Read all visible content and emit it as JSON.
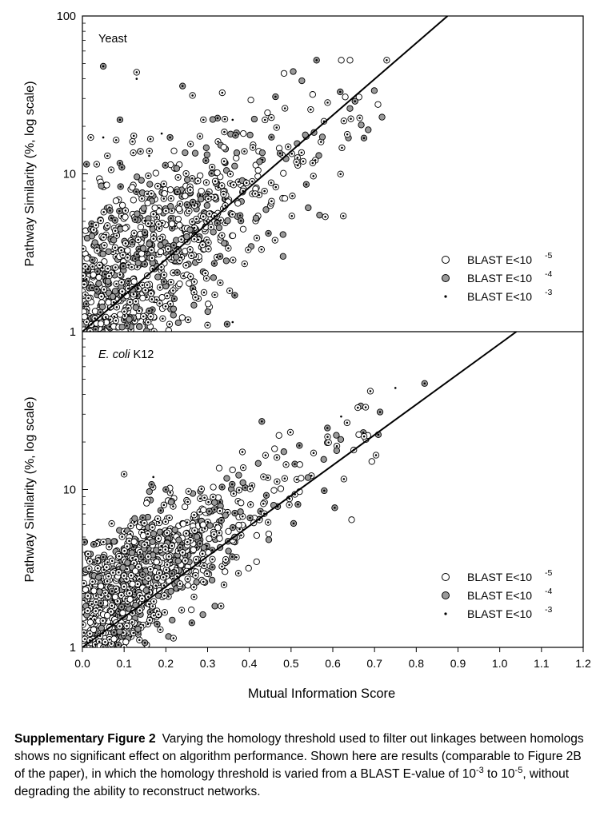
{
  "chart_data": [
    {
      "type": "scatter",
      "panel_label": "Yeast",
      "ylabel": "Pathway Similarity (%, log scale)",
      "yscale": "log",
      "ylim": [
        1,
        100
      ],
      "xlim": [
        0.0,
        1.2
      ],
      "yticks": [
        "1",
        "10",
        "100"
      ],
      "grid": false,
      "legend_position": "bottom-right",
      "series": [
        {
          "name": "BLAST E<10",
          "exponent": "-5",
          "marker": "open-circle",
          "color": "#ffffff",
          "edge": "#000000"
        },
        {
          "name": "BLAST E<10",
          "exponent": "-4",
          "marker": "gray-filled-circle",
          "color": "#9a9a9a",
          "edge": "#000000"
        },
        {
          "name": "BLAST E<10",
          "exponent": "-3",
          "marker": "small-dot",
          "color": "#000000",
          "edge": "#000000"
        }
      ],
      "fit_line": {
        "x": [
          0.0,
          0.875
        ],
        "y": [
          1.0,
          100.0
        ]
      },
      "outliers": [
        {
          "x": 0.05,
          "y": 48
        },
        {
          "x": 0.13,
          "y": 44
        },
        {
          "x": 0.13,
          "y": 40
        },
        {
          "x": 0.24,
          "y": 36
        },
        {
          "x": 0.02,
          "y": 17
        },
        {
          "x": 0.05,
          "y": 17
        },
        {
          "x": 0.09,
          "y": 22
        },
        {
          "x": 0.12,
          "y": 16
        },
        {
          "x": 0.19,
          "y": 18
        },
        {
          "x": 0.21,
          "y": 17
        },
        {
          "x": 0.29,
          "y": 22
        },
        {
          "x": 0.36,
          "y": 22
        },
        {
          "x": 0.365,
          "y": 1.7
        },
        {
          "x": 0.3,
          "y": 1.1
        },
        {
          "x": 0.36,
          "y": 1.15
        },
        {
          "x": 0.33,
          "y": 3.0
        },
        {
          "x": 0.06,
          "y": 13
        },
        {
          "x": 0.16,
          "y": 13
        },
        {
          "x": 0.01,
          "y": 11.5
        }
      ],
      "cloud": {
        "n": 900,
        "x_mean": 0.2,
        "x_spread": 0.2,
        "y_at_x0": 1.6,
        "y_at_x1": 95,
        "log_spread": 0.32
      }
    },
    {
      "type": "scatter",
      "panel_label": "E. coli",
      "panel_label_suffix": "K12",
      "xlabel": "Mutual Information Score",
      "ylabel": "Pathway Similarity (%, log scale)",
      "yscale": "log",
      "ylim": [
        1,
        100
      ],
      "xlim": [
        0.0,
        1.2
      ],
      "xticks": [
        "0.0",
        "0.1",
        "0.2",
        "0.3",
        "0.4",
        "0.5",
        "0.6",
        "0.7",
        "0.8",
        "0.9",
        "1.0",
        "1.1",
        "1.2"
      ],
      "yticks": [
        "1",
        "10",
        "100"
      ],
      "grid": false,
      "legend_position": "bottom-right",
      "series": [
        {
          "name": "BLAST E<10",
          "exponent": "-5",
          "marker": "open-circle",
          "color": "#ffffff",
          "edge": "#000000"
        },
        {
          "name": "BLAST E<10",
          "exponent": "-4",
          "marker": "gray-filled-circle",
          "color": "#9a9a9a",
          "edge": "#000000"
        },
        {
          "name": "BLAST E<10",
          "exponent": "-3",
          "marker": "small-dot",
          "color": "#000000",
          "edge": "#000000"
        }
      ],
      "fit_line": {
        "x": [
          0.0,
          1.04
        ],
        "y": [
          1.0,
          100.0
        ]
      },
      "outliers": [
        {
          "x": 0.43,
          "y": 27
        },
        {
          "x": 0.69,
          "y": 42
        },
        {
          "x": 0.75,
          "y": 44
        },
        {
          "x": 0.82,
          "y": 47
        },
        {
          "x": 0.66,
          "y": 33
        },
        {
          "x": 0.62,
          "y": 29
        },
        {
          "x": 0.52,
          "y": 19
        },
        {
          "x": 0.1,
          "y": 12.5
        },
        {
          "x": 0.17,
          "y": 12
        },
        {
          "x": 0.2,
          "y": 10
        },
        {
          "x": 0.29,
          "y": 2.6
        },
        {
          "x": 0.23,
          "y": 2.3
        },
        {
          "x": 0.05,
          "y": 1.0
        },
        {
          "x": 0.1,
          "y": 1.0
        }
      ],
      "cloud": {
        "n": 1000,
        "x_mean": 0.17,
        "x_spread": 0.16,
        "y_at_x0": 1.6,
        "y_at_x1": 75,
        "log_spread": 0.22
      }
    }
  ],
  "caption": {
    "title": "Supplementary Figure 2",
    "text_before": "Varying the homology threshold used to filter out linkages between homologs shows no significant effect on algorithm performance. Shown here are results (comparable to Figure 2B of the paper), in which the homology threshold is varied from a BLAST E-value of 10",
    "exp_a": "-3",
    "text_mid": " to 10",
    "exp_b": "-5",
    "text_after": ", without degrading the ability to reconstruct networks."
  }
}
